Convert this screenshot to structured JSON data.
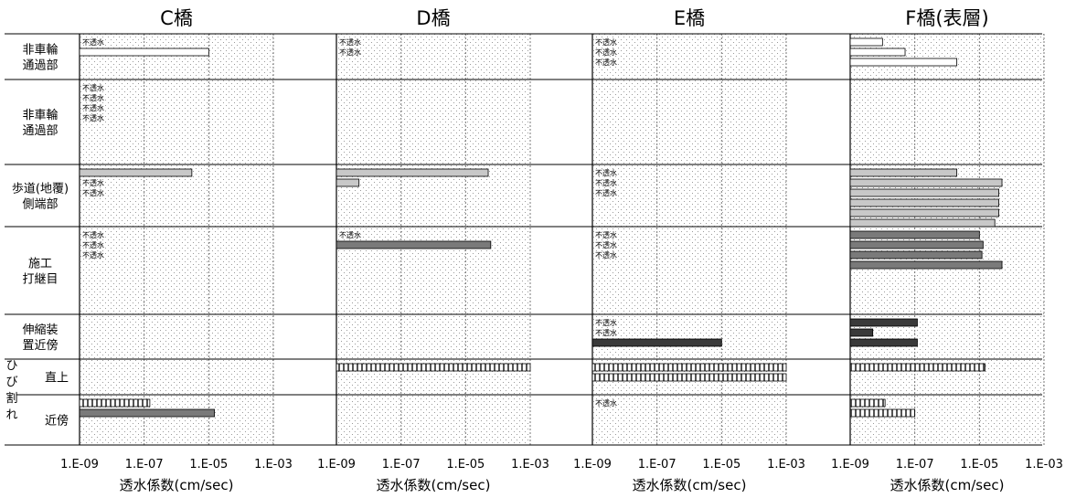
{
  "chart_data": {
    "type": "bar",
    "orientation": "horizontal",
    "x_scale": "log",
    "xlim": [
      1e-09,
      0.001
    ],
    "x_ticks": [
      "1.E-09",
      "1.E-07",
      "1.E-05",
      "1.E-03"
    ],
    "xlabel": "透水係数(cm/sec)",
    "impermeable_label": "不透水",
    "grid": true,
    "categories": [
      {
        "id": "row1",
        "label": [
          "非車輪",
          "通過部"
        ]
      },
      {
        "id": "row2",
        "label": [
          "非車輪",
          "通過部"
        ]
      },
      {
        "id": "row3",
        "label": [
          "歩道(地覆)",
          "側端部"
        ]
      },
      {
        "id": "row4",
        "label": [
          "施工",
          "打継目"
        ]
      },
      {
        "id": "row5",
        "label": [
          "伸縮装",
          "置近傍"
        ]
      },
      {
        "id": "row6",
        "label": [
          "直上"
        ]
      },
      {
        "id": "row7",
        "label": [
          "近傍"
        ]
      }
    ],
    "group_label": [
      "ひ",
      "び",
      "割",
      "れ"
    ],
    "colors": {
      "row1": "#ffffff",
      "row2": "#ffffff",
      "row3": "#c8c8c8",
      "row4": "#7a7a7a",
      "row5": "#3a3a3a",
      "row6": "#ffffff",
      "row7": "#7a7a7a"
    },
    "panels": [
      {
        "title": "C橋",
        "rows": [
          [
            {
              "type": "imp"
            },
            {
              "type": "bar",
              "value": 1e-05
            }
          ],
          [
            {
              "type": "imp"
            },
            {
              "type": "imp"
            },
            {
              "type": "imp"
            },
            {
              "type": "imp"
            }
          ],
          [
            {
              "type": "bar",
              "value": 3e-06
            },
            {
              "type": "imp"
            },
            {
              "type": "imp"
            }
          ],
          [
            {
              "type": "imp"
            },
            {
              "type": "imp"
            },
            {
              "type": "imp"
            }
          ],
          [],
          [],
          [
            {
              "type": "bar",
              "value": 1.5e-07,
              "pattern": "hatch"
            },
            {
              "type": "bar",
              "value": 1.5e-05
            }
          ]
        ]
      },
      {
        "title": "D橋",
        "rows": [
          [
            {
              "type": "imp"
            },
            {
              "type": "imp"
            }
          ],
          [],
          [
            {
              "type": "bar",
              "value": 5e-05
            },
            {
              "type": "bar",
              "value": 5e-09
            }
          ],
          [
            {
              "type": "imp"
            },
            {
              "type": "bar",
              "value": 6e-05
            }
          ],
          [],
          [
            {
              "type": "bar",
              "value": 0.001,
              "pattern": "hatch"
            }
          ],
          []
        ]
      },
      {
        "title": "E橋",
        "rows": [
          [
            {
              "type": "imp"
            },
            {
              "type": "imp"
            },
            {
              "type": "imp"
            }
          ],
          [],
          [
            {
              "type": "imp"
            },
            {
              "type": "imp"
            },
            {
              "type": "imp"
            }
          ],
          [
            {
              "type": "imp"
            },
            {
              "type": "imp"
            },
            {
              "type": "imp"
            }
          ],
          [
            {
              "type": "imp"
            },
            {
              "type": "imp"
            },
            {
              "type": "bar",
              "value": 1e-05
            }
          ],
          [
            {
              "type": "bar",
              "value": 0.001,
              "pattern": "hatch"
            },
            {
              "type": "bar",
              "value": 0.001,
              "pattern": "hatch"
            }
          ],
          [
            {
              "type": "imp"
            }
          ]
        ]
      },
      {
        "title": "F橋(表層)",
        "rows": [
          [
            {
              "type": "bar",
              "value": 1e-08
            },
            {
              "type": "bar",
              "value": 5e-08
            },
            {
              "type": "bar",
              "value": 2e-06
            }
          ],
          [],
          [
            {
              "type": "bar",
              "value": 2e-06
            },
            {
              "type": "bar",
              "value": 5e-05
            },
            {
              "type": "bar",
              "value": 4e-05
            },
            {
              "type": "bar",
              "value": 4e-05
            },
            {
              "type": "bar",
              "value": 4e-05
            },
            {
              "type": "bar",
              "value": 3e-05
            }
          ],
          [
            {
              "type": "bar",
              "value": 1e-05
            },
            {
              "type": "bar",
              "value": 1.3e-05
            },
            {
              "type": "bar",
              "value": 1.2e-05
            },
            {
              "type": "bar",
              "value": 5e-05
            }
          ],
          [
            {
              "type": "bar",
              "value": 1.2e-07
            },
            {
              "type": "bar",
              "value": 5e-09
            },
            {
              "type": "bar",
              "value": 1.2e-07
            }
          ],
          [
            {
              "type": "bar",
              "value": 1.5e-05,
              "pattern": "hatch"
            }
          ],
          [
            {
              "type": "bar",
              "value": 1.2e-08,
              "pattern": "hatch"
            },
            {
              "type": "bar",
              "value": 1e-07,
              "pattern": "hatch"
            }
          ]
        ]
      }
    ]
  }
}
